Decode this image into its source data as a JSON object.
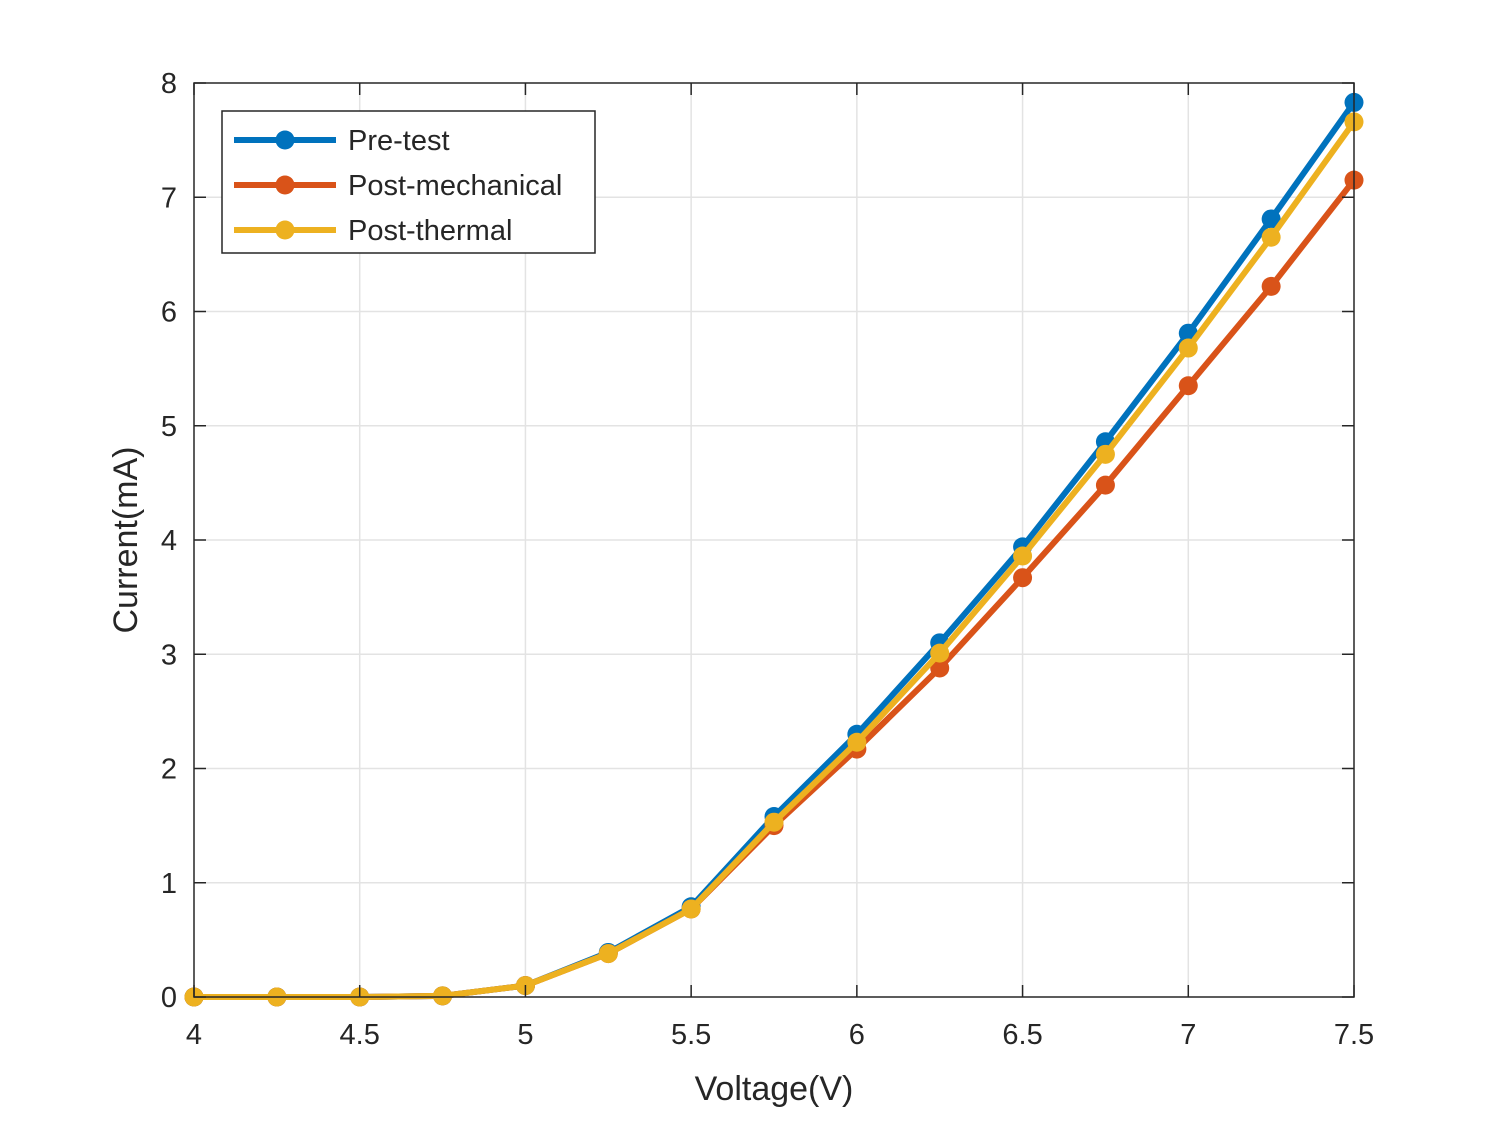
{
  "chart_data": {
    "type": "line",
    "title": "",
    "xlabel": "Voltage(V)",
    "ylabel": "Current(mA)",
    "xlim": [
      4,
      7.5
    ],
    "ylim": [
      0,
      8
    ],
    "xticks": [
      4,
      4.5,
      5,
      5.5,
      6,
      6.5,
      7,
      7.5
    ],
    "xtick_labels": [
      "4",
      "4.5",
      "5",
      "5.5",
      "6",
      "6.5",
      "7",
      "7.5"
    ],
    "yticks": [
      0,
      1,
      2,
      3,
      4,
      5,
      6,
      7,
      8
    ],
    "ytick_labels": [
      "0",
      "1",
      "2",
      "3",
      "4",
      "5",
      "6",
      "7",
      "8"
    ],
    "grid": true,
    "legend_position": "top-left",
    "x": [
      4,
      4.25,
      4.5,
      4.75,
      5,
      5.25,
      5.5,
      5.75,
      6,
      6.25,
      6.5,
      6.75,
      7,
      7.25,
      7.5
    ],
    "series": [
      {
        "name": "Pre-test",
        "color": "#0072BD",
        "values": [
          0.0,
          0.0,
          0.0,
          0.01,
          0.1,
          0.39,
          0.79,
          1.58,
          2.3,
          3.1,
          3.94,
          4.86,
          5.81,
          6.81,
          7.83
        ]
      },
      {
        "name": "Post-mechanical",
        "color": "#D95319",
        "values": [
          0.0,
          0.0,
          0.0,
          0.01,
          0.1,
          0.38,
          0.77,
          1.5,
          2.17,
          2.88,
          3.67,
          4.48,
          5.35,
          6.22,
          7.15
        ]
      },
      {
        "name": "Post-thermal",
        "color": "#EDB120",
        "values": [
          0.0,
          0.0,
          0.0,
          0.01,
          0.1,
          0.38,
          0.77,
          1.53,
          2.23,
          3.01,
          3.86,
          4.75,
          5.68,
          6.65,
          7.66
        ]
      }
    ]
  }
}
